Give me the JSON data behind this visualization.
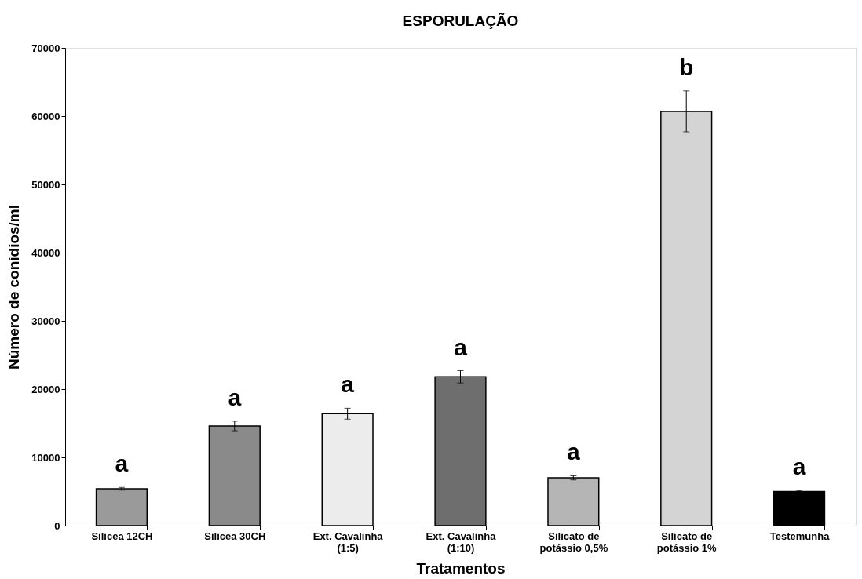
{
  "chart_data": {
    "type": "bar",
    "title": "ESPORULAÇÃO",
    "xlabel": "Tratamentos",
    "ylabel": "Número de conídios/ml",
    "categories": [
      "Silicea 12CH",
      "Silicea 30CH",
      "Ext. Cavalinha\n(1:5)",
      "Ext. Cavalinha\n(1:10)",
      "Silicato de\npotássio  0,5%",
      "Silicato de\npotássio  1%",
      "Testemunha"
    ],
    "values": [
      5400,
      14600,
      16400,
      21800,
      7000,
      60700,
      5000
    ],
    "errors": [
      200,
      700,
      800,
      900,
      300,
      3000,
      150
    ],
    "colors": [
      "#9a9a9a",
      "#8a8a8a",
      "#ececec",
      "#6e6e6e",
      "#b5b5b5",
      "#d4d4d4",
      "#000000"
    ],
    "ylim": [
      0,
      70000
    ],
    "yticks": [
      0,
      10000,
      20000,
      30000,
      40000,
      50000,
      60000,
      70000
    ],
    "grid": false,
    "annotations": [
      "a",
      "a",
      "a",
      "a",
      "a",
      "b",
      "a"
    ]
  }
}
